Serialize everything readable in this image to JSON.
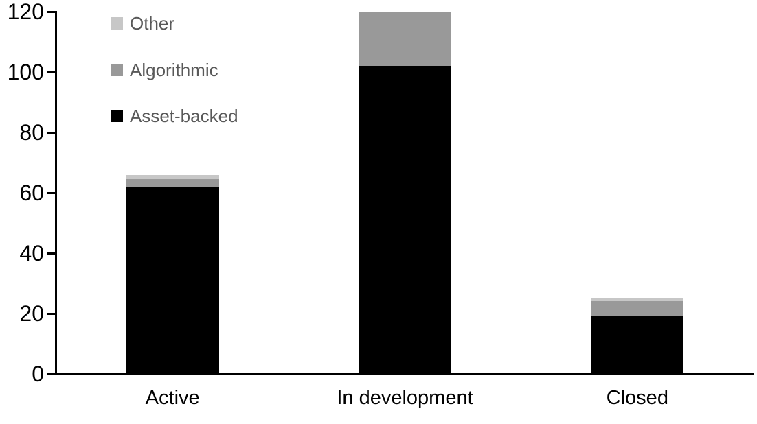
{
  "chart_data": {
    "type": "bar",
    "stacked": true,
    "title": "",
    "xlabel": "",
    "ylabel": "",
    "categories": [
      "Active",
      "In development",
      "Closed"
    ],
    "series": [
      {
        "name": "Asset-backed",
        "color": "#000000",
        "values": [
          62,
          102,
          19
        ]
      },
      {
        "name": "Algorithmic",
        "color": "#999999",
        "values": [
          2.5,
          18,
          5
        ]
      },
      {
        "name": "Other",
        "color": "#c7c7c7",
        "values": [
          1.5,
          0,
          1
        ]
      }
    ],
    "totals": [
      66,
      120,
      25
    ],
    "ylim": [
      0,
      120
    ],
    "yticks": [
      0,
      20,
      40,
      60,
      80,
      100,
      120
    ],
    "grid": false,
    "legend": {
      "position": "top-left",
      "order": [
        "Other",
        "Algorithmic",
        "Asset-backed"
      ],
      "text_color": "#595959"
    },
    "axis_color": "#000000",
    "background": "#ffffff"
  }
}
